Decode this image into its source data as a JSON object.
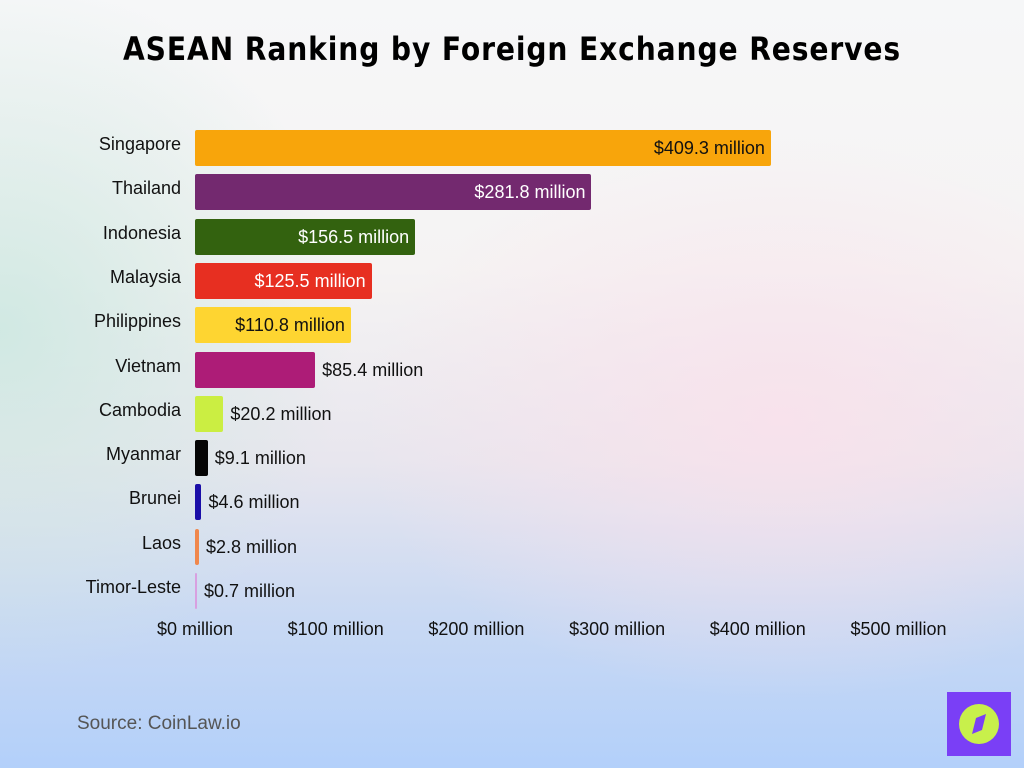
{
  "title": "ASEAN Ranking by Foreign Exchange Reserves",
  "source": "Source: CoinLaw.io",
  "logo": {
    "icon": "compass-icon",
    "bg": "#7a3ff6",
    "fg": "#c8f04b"
  },
  "chart_data": {
    "type": "bar",
    "orientation": "horizontal",
    "title": "ASEAN Ranking by Foreign Exchange Reserves",
    "xlabel": "",
    "ylabel": "",
    "xlim": [
      0,
      500
    ],
    "grid": false,
    "legend": null,
    "categories": [
      "Singapore",
      "Thailand",
      "Indonesia",
      "Malaysia",
      "Philippines",
      "Vietnam",
      "Cambodia",
      "Myanmar",
      "Brunei",
      "Laos",
      "Timor-Leste"
    ],
    "values": [
      409.3,
      281.8,
      156.5,
      125.5,
      110.8,
      85.4,
      20.2,
      9.1,
      4.6,
      2.8,
      0.7
    ],
    "unit": "million USD",
    "data_labels": [
      "$409.3 million",
      "$281.8 million",
      "$156.5 million",
      "$125.5 million",
      "$110.8 million",
      "$85.4 million",
      "$20.2 million",
      "$9.1 million",
      "$4.6 million",
      "$2.8 million",
      "$0.7 million"
    ],
    "colors": [
      "#f8a50b",
      "#73296f",
      "#33620f",
      "#e72f21",
      "#fed531",
      "#ad1c77",
      "#cbee42",
      "#050505",
      "#1a0ea8",
      "#f0874c",
      "#d8a0e0"
    ],
    "x_ticks": [
      "$0 million",
      "$100 million",
      "$200 million",
      "$300 million",
      "$400 million",
      "$500 million"
    ],
    "x_tick_values": [
      0,
      100,
      200,
      300,
      400,
      500
    ]
  }
}
